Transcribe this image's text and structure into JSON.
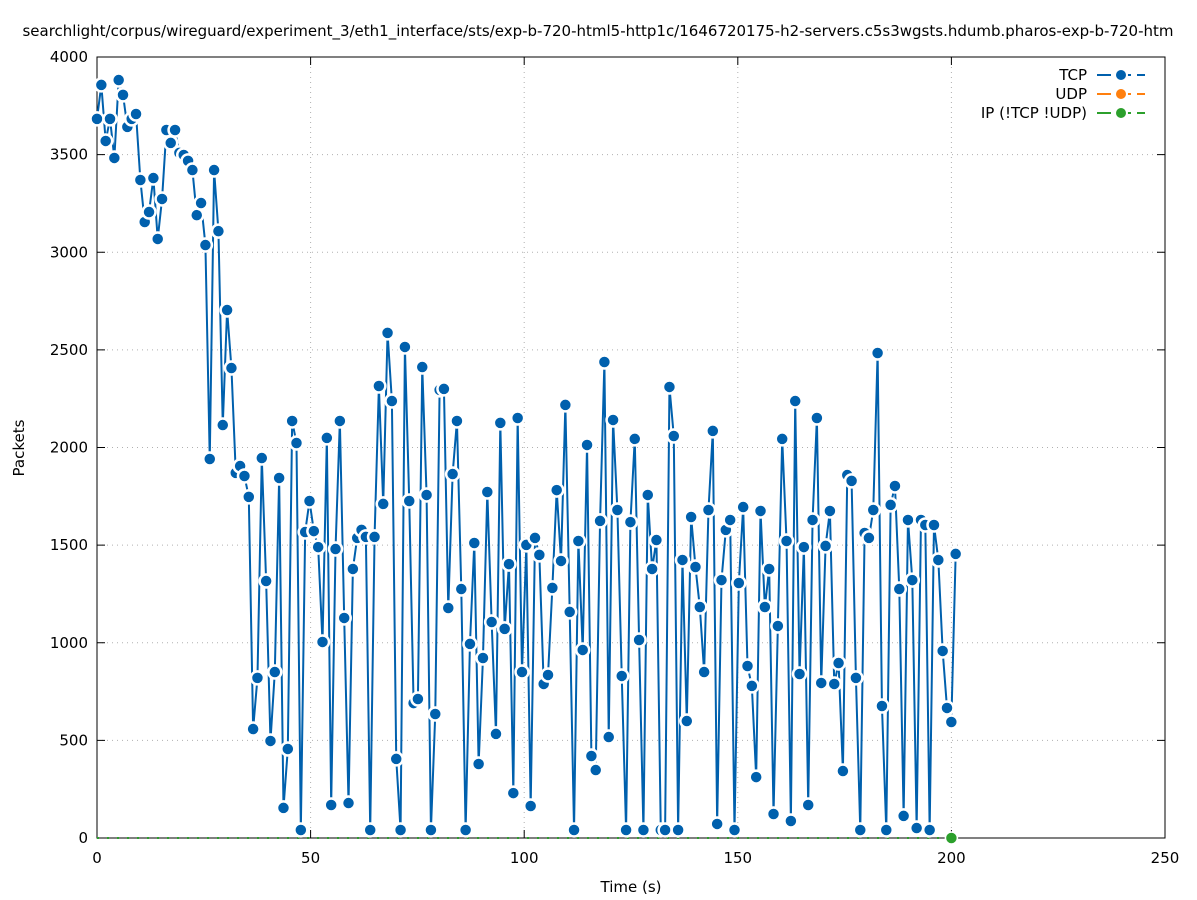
{
  "chart_data": {
    "type": "line",
    "title": "searchlight/corpus/wireguard/experiment_3/eth1_interface/sts/exp-b-720-html5-http1c/1646720175-h2-servers.c5s3wgsts.hdumb.pharos-exp-b-720-htm",
    "xlabel": "Time (s)",
    "ylabel": "Packets",
    "xlim": [
      0,
      250
    ],
    "ylim": [
      0,
      4000
    ],
    "xticks": [
      "0",
      "50",
      "100",
      "150",
      "200",
      "250"
    ],
    "yticks": [
      "0",
      "500",
      "1000",
      "1500",
      "2000",
      "2500",
      "3000",
      "3500",
      "4000"
    ],
    "grid": true,
    "legend_position": "top-right",
    "x_range": [
      0,
      201
    ],
    "series": [
      {
        "name": "TCP",
        "color": "#0060ad",
        "values": [
          3683,
          3857,
          3570,
          3683,
          3483,
          3882,
          3806,
          3642,
          3683,
          3708,
          3370,
          3155,
          3206,
          3380,
          3068,
          3273,
          3626,
          3560,
          3626,
          3509,
          3498,
          3468,
          3421,
          3190,
          3252,
          3037,
          1941,
          3421,
          3108,
          2115,
          2704,
          2407,
          1870,
          1905,
          1854,
          1747,
          558,
          820,
          1946,
          1316,
          497,
          850,
          1844,
          154,
          456,
          2136,
          2023,
          41,
          1567,
          1726,
          1572,
          1490,
          1004,
          2049,
          169,
          1480,
          2136,
          1127,
          179,
          1378,
          1537,
          1578,
          1542,
          41,
          1542,
          2315,
          1711,
          2587,
          2238,
          405,
          41,
          2515,
          1726,
          691,
          712,
          2412,
          1757,
          41,
          635,
          2295,
          2300,
          1178,
          1864,
          2136,
          1275,
          41,
          994,
          1511,
          379,
          922,
          1772,
          1106,
          533,
          2126,
          1071,
          1403,
          230,
          2151,
          850,
          1501,
          164,
          1537,
          1450,
          789,
          835,
          1281,
          1782,
          1419,
          2218,
          1158,
          41,
          1521,
          963,
          2013,
          420,
          348,
          1624,
          2438,
          517,
          2141,
          1680,
          830,
          41,
          1618,
          2044,
          1014,
          41,
          1757,
          1378,
          1526,
          41,
          41,
          2310,
          2059,
          41,
          1424,
          599,
          1644,
          1388,
          1183,
          850,
          1680,
          2085,
          72,
          1321,
          1578,
          1629,
          41,
          1306,
          1695,
          881,
          779,
          312,
          1675,
          1183,
          1378,
          123,
          1086,
          2044,
          1521,
          87,
          2238,
          840,
          1490,
          169,
          1629,
          2151,
          794,
          1496,
          1675,
          789,
          896,
          343,
          1859,
          1829,
          820,
          41,
          1562,
          1537,
          1680,
          2484,
          676,
          41,
          1706,
          1803,
          1275,
          113,
          1629,
          1321,
          51,
          1629,
          1603,
          41,
          1603,
          1424,
          958,
          666,
          594,
          1455
        ]
      },
      {
        "name": "UDP",
        "color": "#ff7f0e",
        "values": []
      },
      {
        "name": "IP (!TCP  !UDP)",
        "color": "#2ca02c",
        "values": [
          0
        ],
        "x": [
          200
        ]
      }
    ]
  }
}
